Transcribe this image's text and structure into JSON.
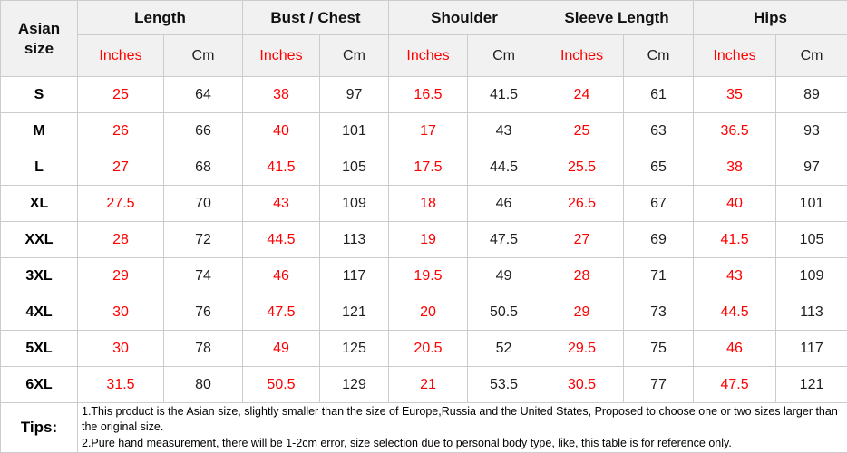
{
  "table": {
    "corner_header": "Asian size",
    "groups": [
      {
        "label": "Length"
      },
      {
        "label": "Bust / Chest"
      },
      {
        "label": "Shoulder"
      },
      {
        "label": "Sleeve Length"
      },
      {
        "label": "Hips"
      }
    ],
    "unit_headers": {
      "inches": "Inches",
      "cm": "Cm"
    },
    "rows": [
      {
        "size": "S",
        "values": [
          25,
          64,
          38,
          97,
          16.5,
          41.5,
          24,
          61,
          35,
          89
        ]
      },
      {
        "size": "M",
        "values": [
          26,
          66,
          40,
          101,
          17,
          43,
          25,
          63,
          36.5,
          93
        ]
      },
      {
        "size": "L",
        "values": [
          27,
          68,
          41.5,
          105,
          17.5,
          44.5,
          25.5,
          65,
          38,
          97
        ]
      },
      {
        "size": "XL",
        "values": [
          27.5,
          70,
          43,
          109,
          18,
          46,
          26.5,
          67,
          40,
          101
        ]
      },
      {
        "size": "XXL",
        "values": [
          28,
          72,
          44.5,
          113,
          19,
          47.5,
          27,
          69,
          41.5,
          105
        ]
      },
      {
        "size": "3XL",
        "values": [
          29,
          74,
          46,
          117,
          19.5,
          49,
          28,
          71,
          43,
          109
        ]
      },
      {
        "size": "4XL",
        "values": [
          30,
          76,
          47.5,
          121,
          20,
          50.5,
          29,
          73,
          44.5,
          113
        ]
      },
      {
        "size": "5XL",
        "values": [
          30,
          78,
          49,
          125,
          20.5,
          52,
          29.5,
          75,
          46,
          117
        ]
      },
      {
        "size": "6XL",
        "values": [
          31.5,
          80,
          50.5,
          129,
          21,
          53.5,
          30.5,
          77,
          47.5,
          121
        ]
      }
    ],
    "tips": {
      "label": "Tips:",
      "lines": [
        "1.This product is the Asian size, slightly smaller than the size of Europe,Russia and the United States, Proposed to choose one or two sizes larger than the original size.",
        "2.Pure hand measurement, there will be 1-2cm error, size selection due to personal body type, like, this table is for reference only."
      ]
    },
    "colors": {
      "inches_text": "#ff0000",
      "cm_text": "#1f1f1f",
      "header_bg": "#f1f1f1",
      "border": "#cccccc"
    }
  }
}
